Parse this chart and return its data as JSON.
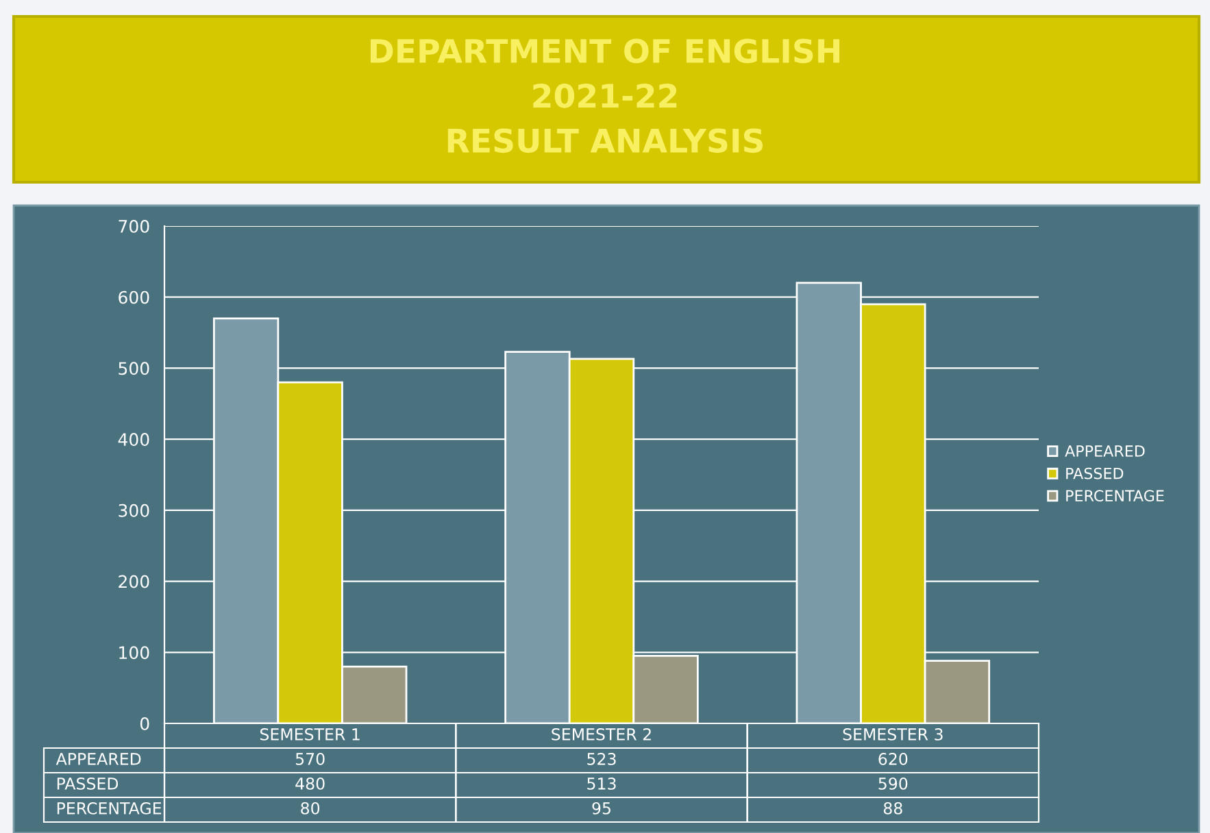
{
  "chart_data": {
    "type": "bar",
    "title": "DEPARTMENT OF ENGLISH\n2021-22\nRESULT ANALYSIS",
    "categories": [
      "SEMESTER 1",
      "SEMESTER 2",
      "SEMESTER 3"
    ],
    "series": [
      {
        "name": "APPEARED",
        "color": "#7a9aa8",
        "values": [
          570,
          523,
          620
        ]
      },
      {
        "name": "PASSED",
        "color": "#d4c80a",
        "values": [
          480,
          513,
          590
        ]
      },
      {
        "name": "PERCENTAGE",
        "color": "#9a9880",
        "values": [
          80,
          95,
          88
        ]
      }
    ],
    "ylim": [
      0,
      700
    ],
    "yticks": [
      0,
      100,
      200,
      300,
      400,
      500,
      600,
      700
    ],
    "grid": "y",
    "legend": "right",
    "data_labels": true
  }
}
